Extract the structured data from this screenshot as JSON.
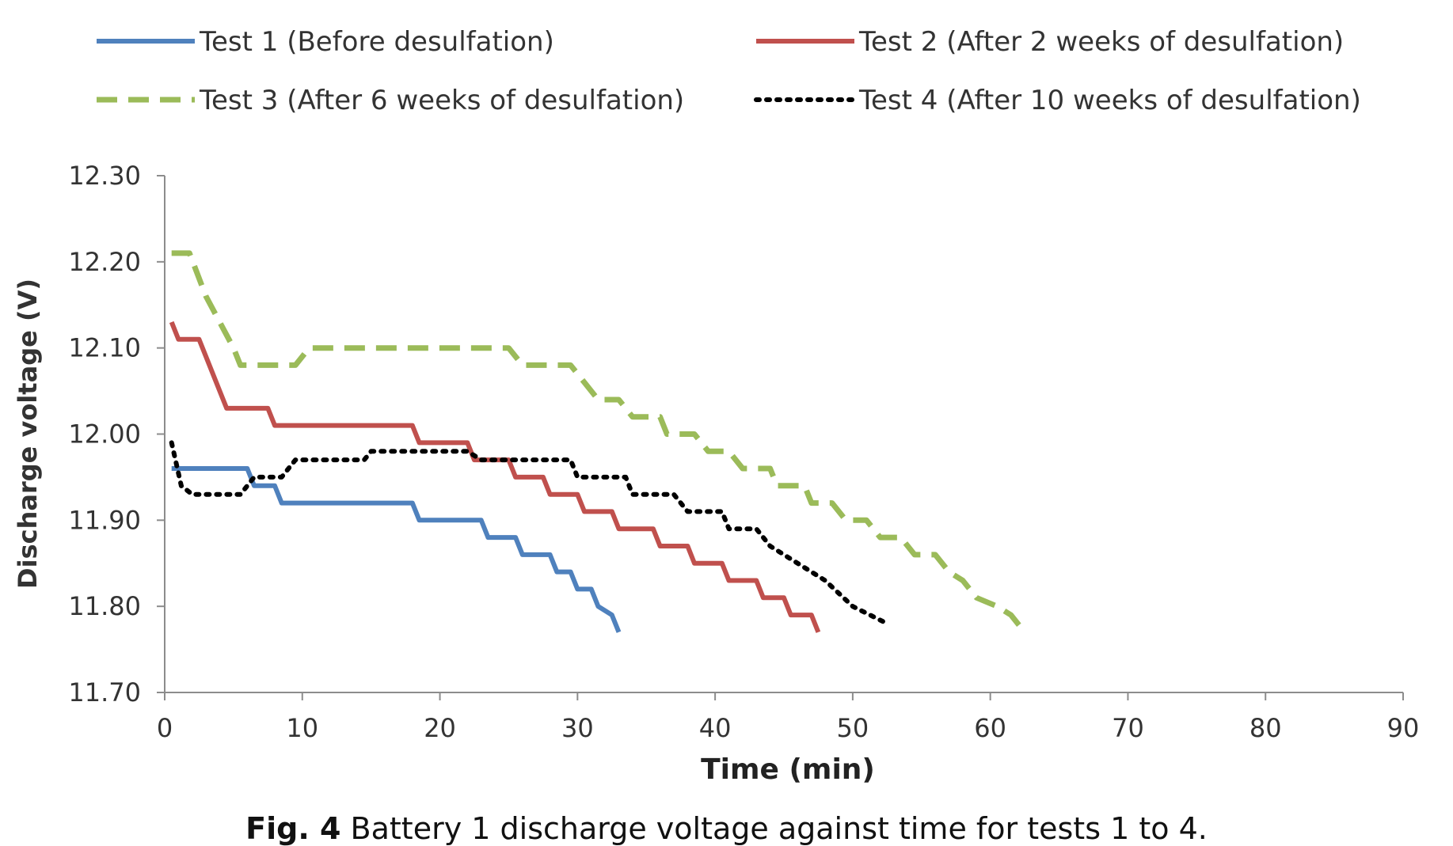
{
  "chart_data": {
    "type": "line",
    "xlabel": "Time (min)",
    "ylabel": "Discharge voltage (V)",
    "xlim": [
      0,
      90
    ],
    "ylim": [
      11.7,
      12.3
    ],
    "x_ticks": [
      "0",
      "10",
      "20",
      "30",
      "40",
      "50",
      "60",
      "70",
      "80",
      "90"
    ],
    "y_ticks": [
      "11.70",
      "11.80",
      "11.90",
      "12.00",
      "12.10",
      "12.20",
      "12.30"
    ],
    "grid": false,
    "legend_position": "top",
    "series": [
      {
        "name": "Test 1 (Before desulfation)",
        "color": "#4f81bd",
        "style": "solid",
        "points": [
          [
            0.5,
            11.96
          ],
          [
            6,
            11.96
          ],
          [
            6.5,
            11.94
          ],
          [
            8,
            11.94
          ],
          [
            8.5,
            11.92
          ],
          [
            18,
            11.92
          ],
          [
            18.5,
            11.9
          ],
          [
            23,
            11.9
          ],
          [
            23.5,
            11.88
          ],
          [
            25.5,
            11.88
          ],
          [
            26,
            11.86
          ],
          [
            28,
            11.86
          ],
          [
            28.5,
            11.84
          ],
          [
            29.5,
            11.84
          ],
          [
            30,
            11.82
          ],
          [
            31,
            11.82
          ],
          [
            31.5,
            11.8
          ],
          [
            32.5,
            11.79
          ],
          [
            33,
            11.77
          ]
        ]
      },
      {
        "name": "Test 2 (After 2 weeks of desulfation)",
        "color": "#c0504d",
        "style": "solid",
        "points": [
          [
            0.5,
            12.13
          ],
          [
            1,
            12.11
          ],
          [
            2.5,
            12.11
          ],
          [
            4.5,
            12.03
          ],
          [
            7.5,
            12.03
          ],
          [
            8,
            12.01
          ],
          [
            18,
            12.01
          ],
          [
            18.5,
            11.99
          ],
          [
            22,
            11.99
          ],
          [
            22.5,
            11.97
          ],
          [
            25,
            11.97
          ],
          [
            25.5,
            11.95
          ],
          [
            27.5,
            11.95
          ],
          [
            28,
            11.93
          ],
          [
            30,
            11.93
          ],
          [
            30.5,
            11.91
          ],
          [
            32.5,
            11.91
          ],
          [
            33,
            11.89
          ],
          [
            35.5,
            11.89
          ],
          [
            36,
            11.87
          ],
          [
            38,
            11.87
          ],
          [
            38.5,
            11.85
          ],
          [
            40.5,
            11.85
          ],
          [
            41,
            11.83
          ],
          [
            43,
            11.83
          ],
          [
            43.5,
            11.81
          ],
          [
            45,
            11.81
          ],
          [
            45.5,
            11.79
          ],
          [
            47,
            11.79
          ],
          [
            47.5,
            11.77
          ]
        ]
      },
      {
        "name": "Test 3 (After 6 weeks of desulfation)",
        "color": "#9bbb59",
        "style": "dashed",
        "points": [
          [
            0.5,
            12.21
          ],
          [
            1.8,
            12.21
          ],
          [
            3,
            12.16
          ],
          [
            5,
            12.1
          ],
          [
            5.5,
            12.08
          ],
          [
            9.5,
            12.08
          ],
          [
            10.5,
            12.1
          ],
          [
            25,
            12.1
          ],
          [
            26,
            12.08
          ],
          [
            29.5,
            12.08
          ],
          [
            30.5,
            12.06
          ],
          [
            31.5,
            12.04
          ],
          [
            33,
            12.04
          ],
          [
            34,
            12.02
          ],
          [
            36,
            12.02
          ],
          [
            36.5,
            12.0
          ],
          [
            38.5,
            12.0
          ],
          [
            39.5,
            11.98
          ],
          [
            41,
            11.98
          ],
          [
            42,
            11.96
          ],
          [
            44,
            11.96
          ],
          [
            44.5,
            11.94
          ],
          [
            46.5,
            11.94
          ],
          [
            47,
            11.92
          ],
          [
            48.5,
            11.92
          ],
          [
            49.5,
            11.9
          ],
          [
            51,
            11.9
          ],
          [
            52,
            11.88
          ],
          [
            53.5,
            11.88
          ],
          [
            54.5,
            11.86
          ],
          [
            56,
            11.86
          ],
          [
            57,
            11.84
          ],
          [
            58,
            11.83
          ],
          [
            59,
            11.81
          ],
          [
            60.5,
            11.8
          ],
          [
            61.5,
            11.79
          ],
          [
            62.5,
            11.77
          ]
        ]
      },
      {
        "name": "Test 4 (After 10 weeks of desulfation)",
        "color": "#000000",
        "style": "dotted",
        "points": [
          [
            0.5,
            11.99
          ],
          [
            1.2,
            11.94
          ],
          [
            2,
            11.93
          ],
          [
            5.5,
            11.93
          ],
          [
            6.5,
            11.95
          ],
          [
            8.5,
            11.95
          ],
          [
            9.5,
            11.97
          ],
          [
            14.5,
            11.97
          ],
          [
            15,
            11.98
          ],
          [
            22,
            11.98
          ],
          [
            23,
            11.97
          ],
          [
            29.5,
            11.97
          ],
          [
            30,
            11.95
          ],
          [
            33.5,
            11.95
          ],
          [
            34,
            11.93
          ],
          [
            37,
            11.93
          ],
          [
            38,
            11.91
          ],
          [
            40.5,
            11.91
          ],
          [
            41,
            11.89
          ],
          [
            43,
            11.89
          ],
          [
            44,
            11.87
          ],
          [
            46,
            11.85
          ],
          [
            48,
            11.83
          ],
          [
            50,
            11.8
          ],
          [
            52.5,
            11.78
          ]
        ]
      }
    ]
  },
  "caption": {
    "bold": "Fig. 4",
    "text": " Battery 1 discharge voltage against time for tests 1 to 4."
  }
}
